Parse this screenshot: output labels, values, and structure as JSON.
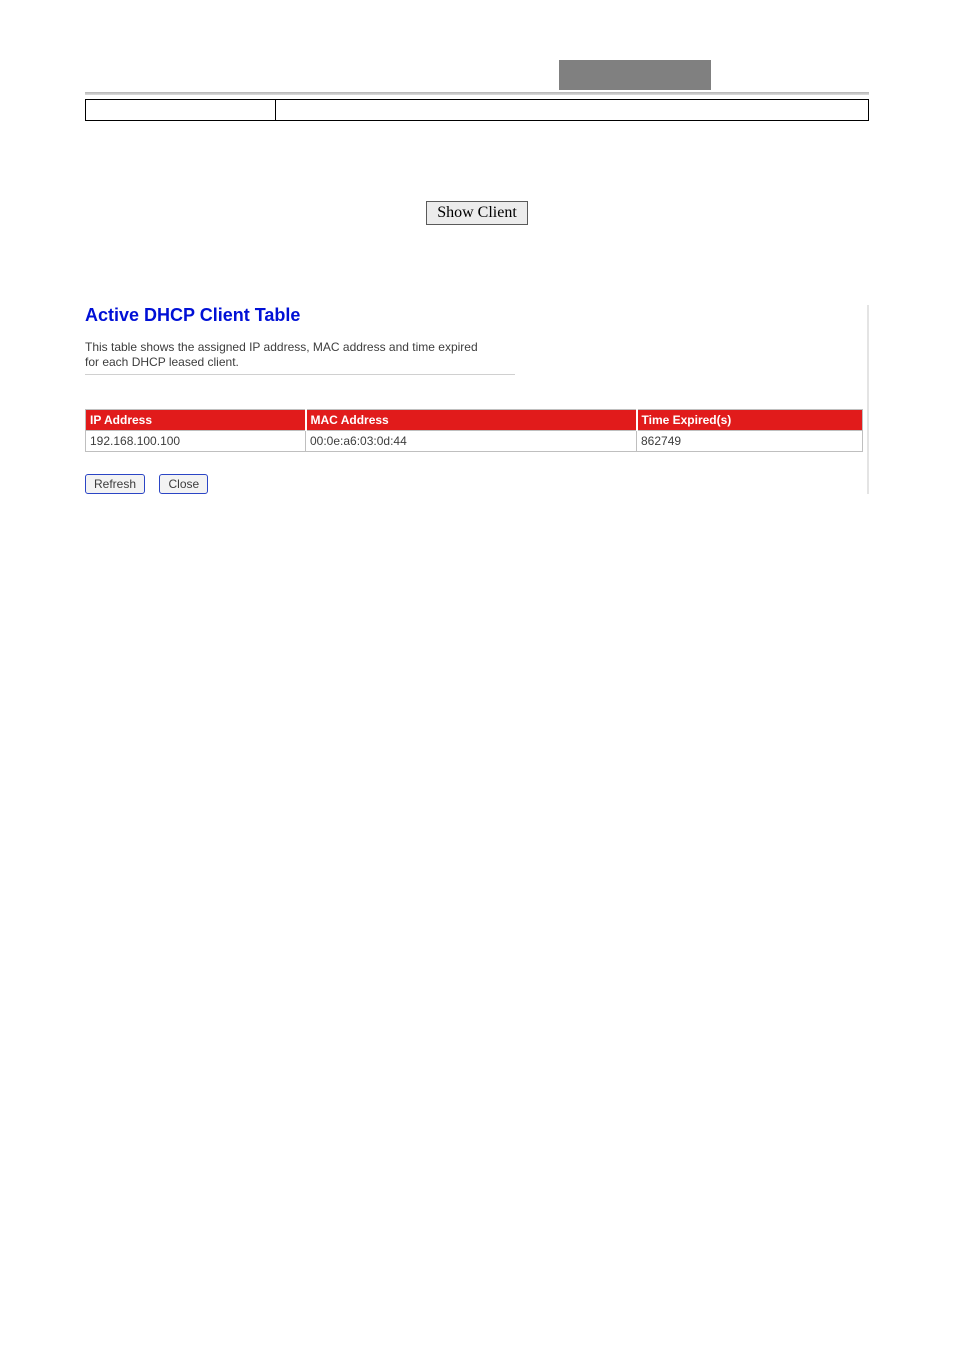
{
  "buttons": {
    "show_client": "Show Client",
    "refresh": "Refresh",
    "close": "Close"
  },
  "title": "Active DHCP Client Table",
  "description_line1": "This table shows the assigned IP address, MAC address and time expired",
  "description_line2": "for each DHCP leased client.",
  "table": {
    "headers": {
      "ip": "IP Address",
      "mac": "MAC Address",
      "time": "Time Expired(s)"
    },
    "rows": [
      {
        "ip": "192.168.100.100",
        "mac": "00:0e:a6:03:0d:44",
        "time": "862749"
      }
    ]
  },
  "colors": {
    "title": "#0010d6",
    "header_bg": "#e11b1b",
    "header_fg": "#ffffff",
    "text": "#3d3d3d",
    "btn_border": "#2b45c5",
    "grey_bar": "#808080"
  }
}
